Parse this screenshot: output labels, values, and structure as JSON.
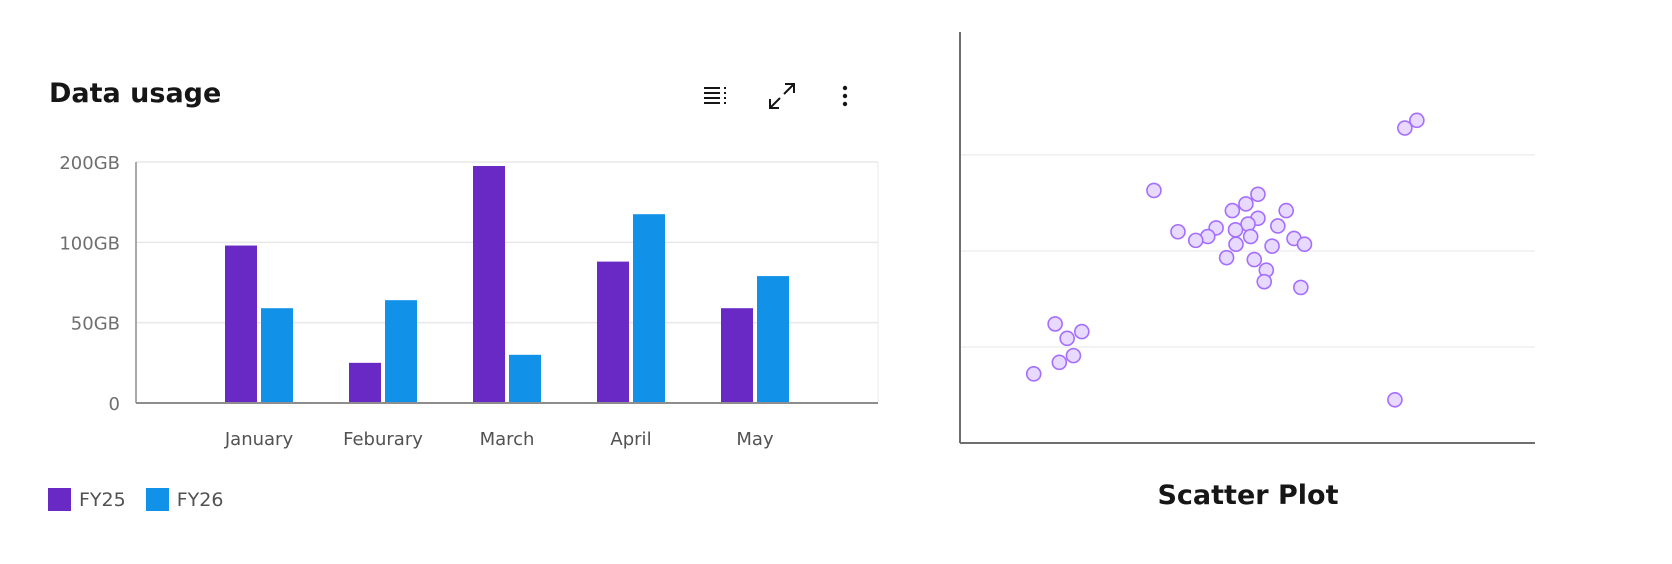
{
  "bar_card": {
    "title": "Data usage",
    "toolbar": {
      "legend_icon": "list-icon",
      "expand_icon": "maximize-icon",
      "overflow_icon": "overflow-menu-vertical-icon"
    }
  },
  "scatter_card": {
    "title": "Scatter Plot"
  },
  "chart_data": [
    {
      "type": "bar",
      "title": "Data usage",
      "categories": [
        "January",
        "Feburary",
        "March",
        "April",
        "May"
      ],
      "y_ticks": [
        0,
        50,
        100,
        200
      ],
      "y_tick_labels": [
        "0",
        "50GB",
        "100GB",
        "200GB"
      ],
      "ylim": [
        0,
        200
      ],
      "y_scale": "tick-spaced (equal spacing between ticks 0, 50, 100, 200)",
      "grid": true,
      "legend": "bottom-left",
      "series": [
        {
          "name": "FY25",
          "color": "#6929c4",
          "values": [
            98,
            25,
            195,
            88,
            59
          ]
        },
        {
          "name": "FY26",
          "color": "#1192e8",
          "values": [
            59,
            64,
            30,
            135,
            79
          ]
        }
      ]
    },
    {
      "type": "scatter",
      "title": "Scatter Plot",
      "xlim": [
        0,
        110
      ],
      "ylim": [
        0,
        4.28
      ],
      "y_gridlines": [
        1,
        2,
        3
      ],
      "grid": true,
      "point_fill": "#e8daff",
      "point_stroke": "#a56eff",
      "points": [
        [
          87.4,
          3.36
        ],
        [
          85.1,
          3.28
        ],
        [
          37.1,
          2.63
        ],
        [
          57.0,
          2.59
        ],
        [
          54.7,
          2.49
        ],
        [
          52.1,
          2.42
        ],
        [
          62.4,
          2.42
        ],
        [
          57.0,
          2.34
        ],
        [
          55.1,
          2.28
        ],
        [
          60.8,
          2.26
        ],
        [
          49.0,
          2.24
        ],
        [
          41.7,
          2.2
        ],
        [
          52.7,
          2.22
        ],
        [
          47.4,
          2.15
        ],
        [
          55.6,
          2.15
        ],
        [
          45.1,
          2.11
        ],
        [
          63.9,
          2.13
        ],
        [
          65.9,
          2.07
        ],
        [
          52.8,
          2.07
        ],
        [
          59.7,
          2.05
        ],
        [
          51.0,
          1.93
        ],
        [
          56.3,
          1.91
        ],
        [
          58.6,
          1.8
        ],
        [
          58.2,
          1.68
        ],
        [
          65.2,
          1.62
        ],
        [
          18.2,
          1.24
        ],
        [
          23.3,
          1.16
        ],
        [
          20.5,
          1.09
        ],
        [
          21.7,
          0.91
        ],
        [
          19.0,
          0.84
        ],
        [
          14.1,
          0.72
        ],
        [
          83.2,
          0.45
        ]
      ]
    }
  ]
}
